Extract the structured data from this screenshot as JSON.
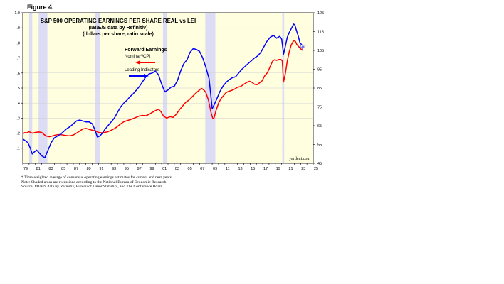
{
  "figure_label": "Figure 4.",
  "chart_data": {
    "type": "line",
    "title": "S&P 500 OPERATING EARNINGS PER SHARE REAL vs LEI",
    "subtitle_lines": [
      "(I/B/E/S data by Refinitiv)",
      "(dollars per share, ratio scale)"
    ],
    "legend": {
      "heading": "Forward Earnings",
      "items": [
        {
          "label": "Nominal*/CPI",
          "color": "#ff0000",
          "arrow": "left"
        },
        {
          "label": "Leading Indicators",
          "color": "#0000ff",
          "arrow": "right"
        }
      ]
    },
    "end_label": "Apr",
    "source_watermark": "yardeni.com",
    "x_ticks": [
      "79",
      "80",
      "81",
      "82",
      "83",
      "84",
      "85",
      "86",
      "87",
      "88",
      "89",
      "90",
      "91",
      "92",
      "93",
      "94",
      "95",
      "96",
      "97",
      "98",
      "99",
      "00",
      "01",
      "02",
      "03",
      "04",
      "05",
      "06",
      "07",
      "08",
      "09",
      "10",
      "11",
      "12",
      "13",
      "14",
      "15",
      "16",
      "17",
      "18",
      "19",
      "20",
      "21",
      "22",
      "23",
      "24",
      "25"
    ],
    "x_tick_labels_shown": [
      "79",
      "81",
      "83",
      "85",
      "87",
      "89",
      "91",
      "93",
      "95",
      "97",
      "99",
      "01",
      "03",
      "05",
      "07",
      "09",
      "11",
      "13",
      "15",
      "17",
      "19",
      "21",
      "23",
      "25"
    ],
    "xlim": [
      1979.0,
      2025.0
    ],
    "left_axis": {
      "ticks": [
        ".1",
        ".2",
        ".3",
        ".4",
        ".5",
        ".6",
        ".7",
        ".8",
        ".9",
        "1.0"
      ],
      "ylim": [
        0.0,
        1.0
      ]
    },
    "right_axis": {
      "ticks": [
        "45",
        "55",
        "65",
        "75",
        "85",
        "95",
        "105",
        "115",
        "125"
      ],
      "ylim": [
        45,
        125
      ]
    },
    "recessions": [
      [
        1980.0,
        1980.5
      ],
      [
        1981.5,
        1982.9
      ],
      [
        1990.5,
        1991.2
      ],
      [
        2001.2,
        2001.9
      ],
      [
        2007.9,
        2009.5
      ],
      [
        2020.1,
        2020.4
      ]
    ],
    "series": [
      {
        "name": "Nominal*/CPI",
        "color": "#ff0000",
        "axis": "left",
        "x": [
          1979.0,
          1979.3,
          1979.6,
          1980.0,
          1980.5,
          1981.0,
          1981.5,
          1982.0,
          1982.4,
          1982.8,
          1983.2,
          1983.6,
          1984.0,
          1984.5,
          1985.0,
          1985.5,
          1986.0,
          1986.5,
          1987.0,
          1987.5,
          1988.0,
          1988.5,
          1989.0,
          1989.5,
          1990.0,
          1990.5,
          1991.0,
          1991.5,
          1992.0,
          1992.5,
          1993.0,
          1993.5,
          1994.0,
          1994.5,
          1995.0,
          1995.5,
          1996.0,
          1996.5,
          1997.0,
          1997.5,
          1998.0,
          1998.5,
          1999.0,
          1999.5,
          2000.0,
          2000.5,
          2000.9,
          2001.3,
          2001.8,
          2002.3,
          2002.8,
          2003.3,
          2003.8,
          2004.3,
          2004.8,
          2005.3,
          2005.8,
          2006.3,
          2006.8,
          2007.3,
          2007.7,
          2008.0,
          2008.4,
          2008.8,
          2009.1,
          2009.3,
          2009.6,
          2010.0,
          2010.4,
          2010.8,
          2011.2,
          2011.6,
          2012.0,
          2012.5,
          2013.0,
          2013.5,
          2014.0,
          2014.5,
          2014.9,
          2015.3,
          2015.7,
          2016.1,
          2016.5,
          2016.9,
          2017.3,
          2017.7,
          2018.0,
          2018.3,
          2018.6,
          2018.9,
          2019.2,
          2019.6,
          2019.9,
          2020.1,
          2020.3,
          2020.6,
          2020.9,
          2021.2,
          2021.5,
          2021.8,
          2022.0,
          2022.2,
          2022.4,
          2022.6,
          2022.9,
          2023.1,
          2023.3
        ],
        "y": [
          0.196,
          0.204,
          0.202,
          0.21,
          0.2,
          0.205,
          0.208,
          0.205,
          0.19,
          0.18,
          0.177,
          0.18,
          0.186,
          0.19,
          0.191,
          0.187,
          0.184,
          0.182,
          0.188,
          0.2,
          0.214,
          0.228,
          0.232,
          0.226,
          0.22,
          0.215,
          0.205,
          0.203,
          0.205,
          0.21,
          0.22,
          0.23,
          0.245,
          0.262,
          0.276,
          0.283,
          0.29,
          0.297,
          0.306,
          0.315,
          0.318,
          0.316,
          0.325,
          0.338,
          0.35,
          0.36,
          0.342,
          0.313,
          0.3,
          0.31,
          0.305,
          0.325,
          0.355,
          0.38,
          0.405,
          0.42,
          0.44,
          0.462,
          0.48,
          0.498,
          0.486,
          0.47,
          0.42,
          0.34,
          0.296,
          0.302,
          0.35,
          0.4,
          0.43,
          0.45,
          0.47,
          0.478,
          0.483,
          0.492,
          0.505,
          0.51,
          0.525,
          0.538,
          0.545,
          0.538,
          0.525,
          0.522,
          0.535,
          0.548,
          0.58,
          0.6,
          0.625,
          0.655,
          0.68,
          0.688,
          0.684,
          0.69,
          0.69,
          0.68,
          0.54,
          0.6,
          0.68,
          0.74,
          0.785,
          0.808,
          0.815,
          0.808,
          0.79,
          0.78,
          0.765,
          0.758,
          0.75
        ]
      },
      {
        "name": "Leading Indicators",
        "color": "#0000ff",
        "axis": "right",
        "x": [
          1979.0,
          1979.4,
          1979.8,
          1980.2,
          1980.5,
          1980.8,
          1981.2,
          1981.6,
          1982.0,
          1982.5,
          1983.0,
          1983.5,
          1984.0,
          1984.5,
          1985.0,
          1985.5,
          1986.0,
          1986.5,
          1987.0,
          1987.5,
          1988.0,
          1988.5,
          1989.0,
          1989.5,
          1990.0,
          1990.4,
          1990.8,
          1991.2,
          1991.6,
          1992.0,
          1992.5,
          1993.0,
          1993.5,
          1994.0,
          1994.5,
          1995.0,
          1995.5,
          1996.0,
          1996.5,
          1997.0,
          1997.5,
          1998.0,
          1998.5,
          1999.0,
          1999.5,
          2000.0,
          2000.5,
          2001.0,
          2001.5,
          2002.0,
          2002.5,
          2003.0,
          2003.5,
          2004.0,
          2004.5,
          2005.0,
          2005.5,
          2006.0,
          2006.5,
          2007.0,
          2007.5,
          2008.0,
          2008.5,
          2009.0,
          2009.3,
          2009.7,
          2010.2,
          2010.7,
          2011.2,
          2011.7,
          2012.2,
          2012.7,
          2013.2,
          2013.7,
          2014.2,
          2014.7,
          2015.2,
          2015.7,
          2016.2,
          2016.7,
          2017.2,
          2017.7,
          2018.2,
          2018.7,
          2019.2,
          2019.7,
          2020.0,
          2020.3,
          2020.6,
          2020.9,
          2021.2,
          2021.6,
          2021.9,
          2022.1,
          2022.3,
          2022.6,
          2022.9,
          2023.2
        ],
        "y": [
          58.0,
          57.0,
          56.0,
          53.0,
          50.0,
          51.0,
          52.0,
          50.5,
          49.0,
          48.0,
          52.0,
          56.0,
          58.5,
          59.5,
          60.5,
          62.0,
          63.5,
          64.5,
          66.0,
          67.5,
          68.0,
          67.5,
          67.0,
          67.0,
          66.0,
          63.0,
          59.0,
          59.5,
          61.0,
          63.0,
          65.0,
          67.0,
          69.0,
          72.0,
          75.0,
          77.0,
          78.5,
          80.5,
          82.0,
          84.0,
          86.0,
          88.5,
          91.0,
          92.5,
          93.0,
          94.0,
          92.0,
          87.0,
          83.0,
          84.0,
          85.5,
          86.0,
          89.0,
          94.0,
          98.0,
          100.0,
          104.0,
          106.0,
          105.5,
          104.5,
          101.0,
          96.0,
          90.0,
          74.0,
          76.0,
          79.0,
          83.0,
          86.0,
          88.0,
          89.5,
          90.5,
          91.0,
          93.0,
          95.0,
          96.5,
          98.0,
          99.5,
          101.0,
          102.0,
          104.0,
          107.0,
          110.0,
          112.0,
          113.0,
          111.5,
          112.5,
          111.0,
          103.0,
          107.5,
          112.0,
          114.5,
          117.0,
          119.0,
          118.5,
          116.0,
          113.0,
          109.0,
          108.0
        ]
      }
    ]
  },
  "footnote_lines": [
    "*   Time-weighted average of consensus operating earnings estimates for current and next years.",
    "    Note: Shaded areas are recessions according to the National Bureau of Economic Research.",
    "    Source: I/B/E/S data by Refinitiv, Bureau of Labor Statistics, and The Conference Board."
  ]
}
